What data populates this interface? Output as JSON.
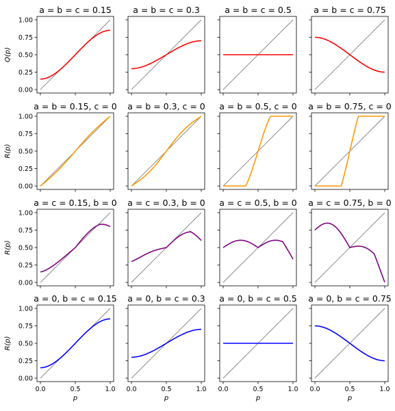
{
  "figure": {
    "rows": 4,
    "cols": 4,
    "x_label": "p",
    "y_labels": [
      "Q(p)",
      "R(p)",
      "R(p)",
      "R(p)"
    ],
    "x_ticks": [
      "0.0",
      "0.5",
      "1.0"
    ],
    "y_ticks": [
      "0.00",
      "0.25",
      "0.50",
      "0.75",
      "1.00"
    ],
    "row_colors": [
      "#ff0000",
      "#ff9900",
      "#800080",
      "#0000ff"
    ],
    "diagonal_color": "#808080"
  },
  "chart_data": [
    {
      "type": "line",
      "row": 0,
      "col": 0,
      "title": "a = b = c = 0.15",
      "a": 0.15,
      "b": 0.15,
      "c": 0.15,
      "xlim": [
        0,
        1
      ],
      "ylim": [
        0,
        1
      ]
    },
    {
      "type": "line",
      "row": 0,
      "col": 1,
      "title": "a = b = c = 0.3",
      "a": 0.3,
      "b": 0.3,
      "c": 0.3,
      "xlim": [
        0,
        1
      ],
      "ylim": [
        0,
        1
      ]
    },
    {
      "type": "line",
      "row": 0,
      "col": 2,
      "title": "a = b = c = 0.5",
      "a": 0.5,
      "b": 0.5,
      "c": 0.5,
      "xlim": [
        0,
        1
      ],
      "ylim": [
        0,
        1
      ]
    },
    {
      "type": "line",
      "row": 0,
      "col": 3,
      "title": "a = b = c = 0.75",
      "a": 0.75,
      "b": 0.75,
      "c": 0.75,
      "xlim": [
        0,
        1
      ],
      "ylim": [
        0,
        1
      ]
    },
    {
      "type": "line",
      "row": 1,
      "col": 0,
      "title": "a = b = 0.15, c = 0",
      "a": 0.15,
      "b": 0.15,
      "c": 0,
      "xlim": [
        0,
        1
      ],
      "ylim": [
        0,
        1
      ]
    },
    {
      "type": "line",
      "row": 1,
      "col": 1,
      "title": "a = b = 0.3, c = 0",
      "a": 0.3,
      "b": 0.3,
      "c": 0,
      "xlim": [
        0,
        1
      ],
      "ylim": [
        0,
        1
      ]
    },
    {
      "type": "line",
      "row": 1,
      "col": 2,
      "title": "a = b = 0.5, c = 0",
      "a": 0.5,
      "b": 0.5,
      "c": 0,
      "xlim": [
        0,
        1
      ],
      "ylim": [
        0,
        1
      ]
    },
    {
      "type": "line",
      "row": 1,
      "col": 3,
      "title": "a = b = 0.75, c = 0",
      "a": 0.75,
      "b": 0.75,
      "c": 0,
      "xlim": [
        0,
        1
      ],
      "ylim": [
        0,
        1
      ]
    },
    {
      "type": "line",
      "row": 2,
      "col": 0,
      "title": "a = c = 0.15, b = 0",
      "a": 0.15,
      "b": 0,
      "c": 0.15,
      "xlim": [
        0,
        1
      ],
      "ylim": [
        0,
        1
      ]
    },
    {
      "type": "line",
      "row": 2,
      "col": 1,
      "title": "a = c = 0.3, b = 0",
      "a": 0.3,
      "b": 0,
      "c": 0.3,
      "xlim": [
        0,
        1
      ],
      "ylim": [
        0,
        1
      ]
    },
    {
      "type": "line",
      "row": 2,
      "col": 2,
      "title": "a = c = 0.5, b = 0",
      "a": 0.5,
      "b": 0,
      "c": 0.5,
      "xlim": [
        0,
        1
      ],
      "ylim": [
        0,
        1
      ]
    },
    {
      "type": "line",
      "row": 2,
      "col": 3,
      "title": "a = c = 0.75, b = 0",
      "a": 0.75,
      "b": 0,
      "c": 0.75,
      "xlim": [
        0,
        1
      ],
      "ylim": [
        0,
        1
      ]
    },
    {
      "type": "line",
      "row": 3,
      "col": 0,
      "title": "a = 0, b = c = 0.15",
      "a": 0,
      "b": 0.15,
      "c": 0.15,
      "xlim": [
        0,
        1
      ],
      "ylim": [
        0,
        1
      ]
    },
    {
      "type": "line",
      "row": 3,
      "col": 1,
      "title": "a = 0, b = c = 0.3",
      "a": 0,
      "b": 0.3,
      "c": 0.3,
      "xlim": [
        0,
        1
      ],
      "ylim": [
        0,
        1
      ]
    },
    {
      "type": "line",
      "row": 3,
      "col": 2,
      "title": "a = 0, b = c = 0.5",
      "a": 0,
      "b": 0.5,
      "c": 0.5,
      "xlim": [
        0,
        1
      ],
      "ylim": [
        0,
        1
      ]
    },
    {
      "type": "line",
      "row": 3,
      "col": 3,
      "title": "a = 0, b = c = 0.75",
      "a": 0,
      "b": 0.75,
      "c": 0.75,
      "xlim": [
        0,
        1
      ],
      "ylim": [
        0,
        1
      ]
    }
  ]
}
